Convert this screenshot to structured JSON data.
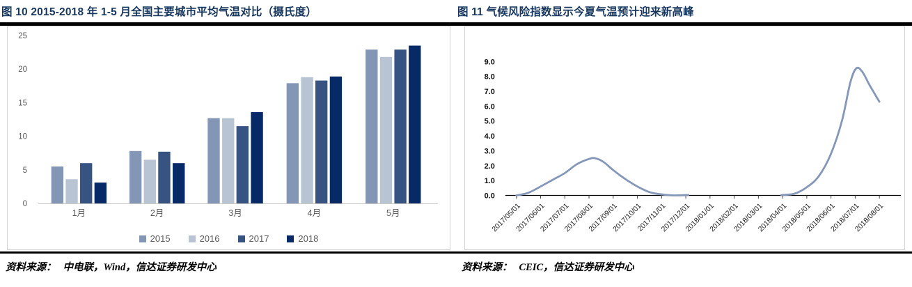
{
  "theme": {
    "title_color": "#17375e",
    "rule_color": "#000000",
    "axis_label_color": "#595959",
    "box_border_color": "#d4d4d4"
  },
  "figures": {
    "fig10": {
      "title": "图  10 2015-2018 年 1-5 月全国主要城市平均气温对比（摄氏度）",
      "source_label": "资料来源：",
      "source": "中电联，Wind，信达证券研发中心"
    },
    "fig11": {
      "title": "图  11 气候风险指数显示今夏气温预计迎来新高峰",
      "source_label": "资料来源：",
      "source": "CEIC，信达证券研发中心"
    }
  },
  "chart_data": [
    {
      "type": "bar",
      "title": "2015-2018 年 1-5 月全国主要城市平均气温对比（摄氏度）",
      "categories": [
        "1月",
        "2月",
        "3月",
        "4月",
        "5月"
      ],
      "series": [
        {
          "name": "2015",
          "color": "#8496b5",
          "values": [
            5.5,
            7.8,
            12.7,
            17.9,
            22.9
          ]
        },
        {
          "name": "2016",
          "color": "#b8c3d4",
          "values": [
            3.6,
            6.5,
            12.7,
            18.8,
            21.8
          ]
        },
        {
          "name": "2017",
          "color": "#365381",
          "values": [
            6.0,
            7.7,
            11.5,
            18.3,
            22.9
          ]
        },
        {
          "name": "2018",
          "color": "#072a66",
          "values": [
            3.1,
            6.0,
            13.6,
            18.9,
            23.5
          ]
        }
      ],
      "ylim": [
        0,
        25
      ],
      "yticks": [
        0,
        5,
        10,
        15,
        20,
        25
      ],
      "legend_position": "bottom",
      "grid": false
    },
    {
      "type": "line",
      "title": "气候风险指数",
      "x_labels": [
        "2017/05/01",
        "2017/06/01",
        "2017/07/01",
        "2017/08/01",
        "2017/09/01",
        "2017/10/01",
        "2017/11/01",
        "2017/12/01",
        "2018/01/01",
        "2018/02/01",
        "2018/03/01",
        "2018/04/01",
        "2018/05/01",
        "2018/06/01",
        "2018/07/01",
        "2018/08/01"
      ],
      "yticks": [
        "0.0",
        "1.0",
        "2.0",
        "3.0",
        "4.0",
        "5.0",
        "6.0",
        "7.0",
        "8.0",
        "9.0"
      ],
      "ylim": [
        0,
        9
      ],
      "line_color": "#8497b9",
      "grid": false,
      "legend_position": "none",
      "monthly_values": [
        0.0,
        0.6,
        1.5,
        2.5,
        1.7,
        0.6,
        0.1,
        0.0,
        null,
        null,
        null,
        0.0,
        0.55,
        2.8,
        8.6,
        6.3
      ],
      "segments": [
        [
          [
            0,
            0.0
          ],
          [
            0.5,
            0.18
          ],
          [
            1,
            0.6
          ],
          [
            1.5,
            1.05
          ],
          [
            2,
            1.5
          ],
          [
            2.5,
            2.1
          ],
          [
            3,
            2.45
          ],
          [
            3.25,
            2.5
          ],
          [
            3.6,
            2.25
          ],
          [
            4,
            1.7
          ],
          [
            4.5,
            1.1
          ],
          [
            5,
            0.6
          ],
          [
            5.5,
            0.22
          ],
          [
            6,
            0.07
          ],
          [
            6.5,
            0.0
          ],
          [
            7.1,
            0.03
          ]
        ],
        [
          [
            10.95,
            0.02
          ],
          [
            11.5,
            0.12
          ],
          [
            12,
            0.55
          ],
          [
            12.5,
            1.3
          ],
          [
            13,
            2.8
          ],
          [
            13.45,
            5.0
          ],
          [
            13.8,
            7.6
          ],
          [
            14.05,
            8.55
          ],
          [
            14.3,
            8.3
          ],
          [
            14.6,
            7.4
          ],
          [
            15,
            6.3
          ]
        ]
      ]
    }
  ]
}
